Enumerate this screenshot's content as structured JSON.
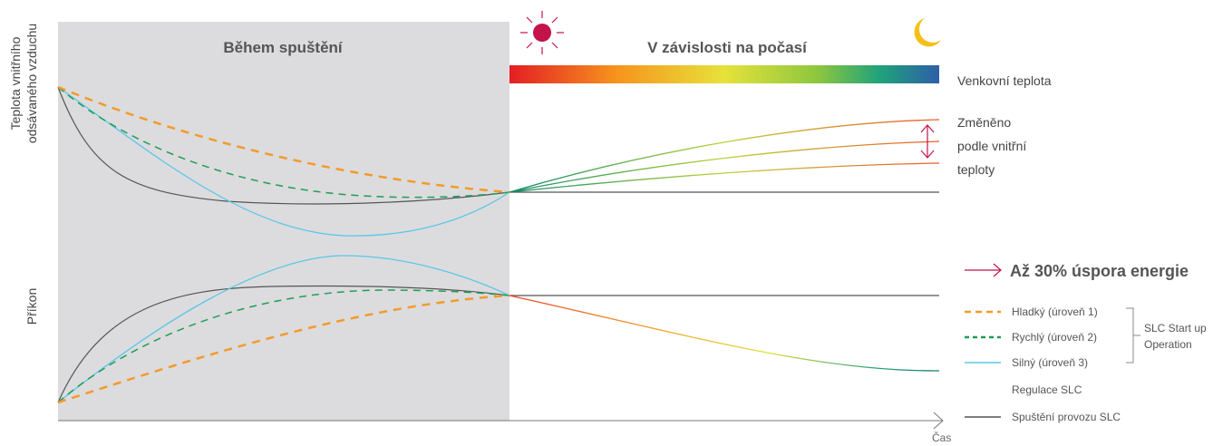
{
  "y_axis_labels": {
    "upper_line1": "Teplota vnitřního",
    "upper_line2": "odsávaného vzduchu",
    "lower": "Příkon"
  },
  "x_axis_label": "Čas",
  "sections": {
    "startup": "Během spuštění",
    "weather": "V závislosti na počasí"
  },
  "colors": {
    "startup_bg": "#dcdcde",
    "smooth": "#f39a2b",
    "fast": "#1f9d55",
    "strong": "#5bc6e8",
    "slc_start": "#555555",
    "accent": "#c4124a",
    "gradient": [
      "#e31e24",
      "#f7941d",
      "#e6e23a",
      "#8cc63f",
      "#1fa37a",
      "#2e5ea8"
    ]
  },
  "icons": {
    "day": "sun-icon",
    "night": "moon-icon"
  },
  "right_labels": {
    "outdoor": "Venkovní teplota",
    "changed_line1": "Změněno",
    "changed_line2": "podle vnitřní",
    "changed_line3": "teploty",
    "saving": "Až 30% úspora energie"
  },
  "legend": {
    "items": [
      {
        "key": "smooth",
        "label": "Hladký (úroveň 1)"
      },
      {
        "key": "fast",
        "label": "Rychlý (úroveň 2)"
      },
      {
        "key": "strong",
        "label": "Silný (úroveň 3)"
      },
      {
        "key": "regulation",
        "label": "Regulace SLC"
      },
      {
        "key": "slc_start",
        "label": "Spuštění provozu SLC"
      }
    ],
    "group_line1": "SLC Start up",
    "group_line2": "Operation"
  }
}
